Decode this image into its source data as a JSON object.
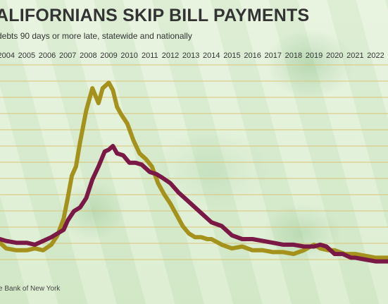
{
  "title": "ALIFORNIANS SKIP BILL PAYMENTS",
  "subtitle": " debts 90 days or more late, statewide and nationally",
  "source": "e Bank of New York",
  "chart_data": {
    "type": "line",
    "title": "ALIFORNIANS SKIP BILL PAYMENTS",
    "subtitle": " debts 90 days or more late, statewide and nationally",
    "x_tick_labels": [
      "2004",
      "2005",
      "2006",
      "2007",
      "2008",
      "2009",
      "2010",
      "2011",
      "2012",
      "2013",
      "2014",
      "2015",
      "2016",
      "2017",
      "2018",
      "2019",
      "2020",
      "2021",
      "2022"
    ],
    "xlim": [
      2003.7,
      2022.6
    ],
    "ylim": [
      0,
      100
    ],
    "y_ticks_unlabeled": true,
    "grid": "horizontal",
    "series": [
      {
        "color": "#a5921c",
        "x": [
          2003.7,
          2004.0,
          2004.5,
          2005.0,
          2005.4,
          2005.8,
          2006.2,
          2006.5,
          2006.8,
          2007.0,
          2007.2,
          2007.4,
          2007.6,
          2007.9,
          2008.2,
          2008.5,
          2008.7,
          2008.9,
          2009.0,
          2009.2,
          2009.4,
          2009.6,
          2009.9,
          2010.2,
          2010.5,
          2010.8,
          2011.1,
          2011.4,
          2011.7,
          2012.0,
          2012.3,
          2012.6,
          2012.9,
          2013.2,
          2013.5,
          2013.8,
          2014.0,
          2014.5,
          2015.0,
          2015.5,
          2016.0,
          2016.5,
          2017.0,
          2017.5,
          2018.0,
          2018.5,
          2019.0,
          2019.3,
          2019.7,
          2020.0,
          2020.5,
          2021.0,
          2021.5,
          2022.0,
          2022.6
        ],
        "values": [
          9,
          6,
          5,
          5,
          6,
          5,
          8,
          13,
          22,
          33,
          45,
          50,
          63,
          80,
          92,
          84,
          92,
          94,
          95,
          91,
          82,
          78,
          73,
          64,
          57,
          54,
          50,
          41,
          35,
          30,
          24,
          18,
          14,
          12,
          12,
          11,
          11,
          8,
          6,
          7,
          5,
          5,
          4,
          4,
          3,
          5,
          8,
          6,
          5,
          5,
          3,
          3,
          2,
          1,
          1
        ]
      },
      {
        "color": "#7a1846",
        "x": [
          2003.7,
          2004.0,
          2004.5,
          2005.0,
          2005.4,
          2005.8,
          2006.2,
          2006.5,
          2006.8,
          2007.0,
          2007.3,
          2007.6,
          2007.9,
          2008.2,
          2008.5,
          2008.8,
          2009.0,
          2009.2,
          2009.4,
          2009.7,
          2010.0,
          2010.3,
          2010.6,
          2011.0,
          2011.3,
          2011.6,
          2012.0,
          2012.4,
          2012.8,
          2013.2,
          2013.6,
          2014.0,
          2014.5,
          2015.0,
          2015.5,
          2016.0,
          2016.5,
          2017.0,
          2017.5,
          2018.0,
          2018.5,
          2019.0,
          2019.3,
          2019.6,
          2020.0,
          2020.4,
          2020.8,
          2021.0,
          2021.5,
          2022.0,
          2022.6
        ],
        "values": [
          11,
          10,
          9,
          9,
          8,
          10,
          12,
          14,
          16,
          21,
          26,
          28,
          33,
          43,
          50,
          58,
          59,
          61,
          57,
          56,
          52,
          52,
          51,
          47,
          46,
          44,
          41,
          36,
          32,
          28,
          24,
          20,
          18,
          13,
          11,
          11,
          10,
          9,
          8,
          8,
          7,
          7,
          8,
          7,
          3,
          3,
          1,
          1,
          0,
          -1,
          -1
        ]
      }
    ]
  }
}
